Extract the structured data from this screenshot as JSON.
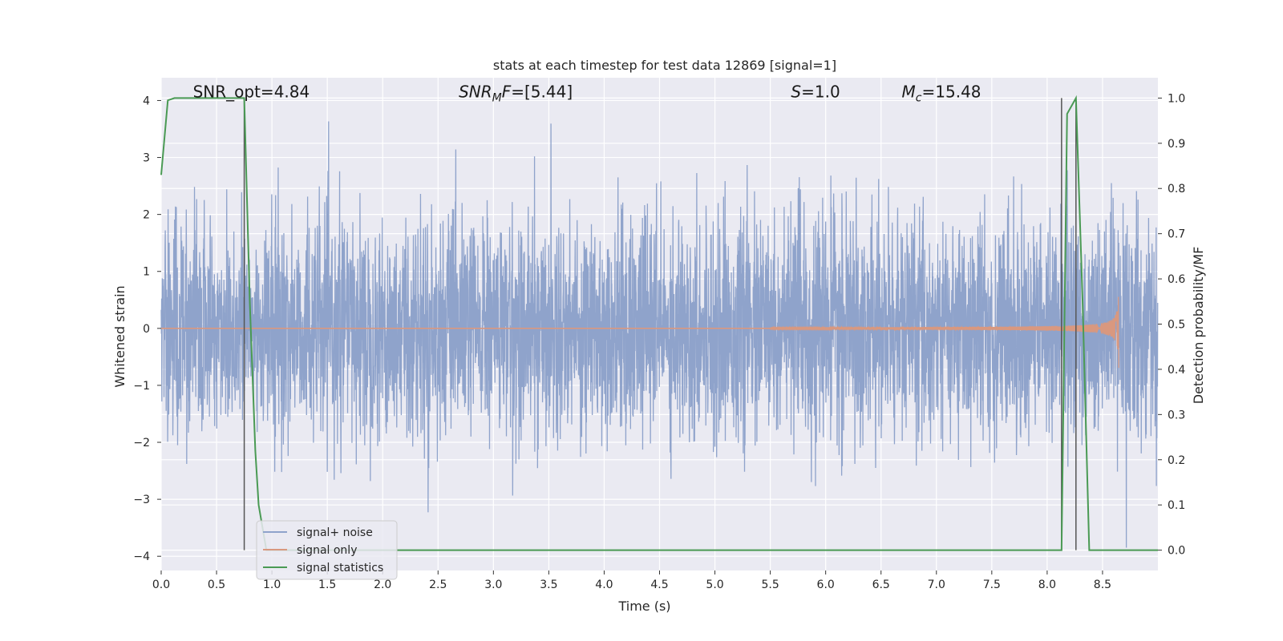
{
  "chart_data": {
    "type": "line",
    "title": "stats at each timestep for test data 12869 [signal=1]",
    "xlabel": "Time (s)",
    "ylabel_left": "Whitened strain",
    "ylabel_right": "Detection probability/MF",
    "xlim": [
      0.0,
      9.0
    ],
    "ylim_left": [
      -4.25,
      4.4
    ],
    "ylim_right": [
      -0.045,
      1.045
    ],
    "xticks": [
      0.0,
      0.5,
      1.0,
      1.5,
      2.0,
      2.5,
      3.0,
      3.5,
      4.0,
      4.5,
      5.0,
      5.5,
      6.0,
      6.5,
      7.0,
      7.5,
      8.0,
      8.5
    ],
    "xtick_labels": [
      "0.0",
      "0.5",
      "1.0",
      "1.5",
      "2.0",
      "2.5",
      "3.0",
      "3.5",
      "4.0",
      "4.5",
      "5.0",
      "5.5",
      "6.0",
      "6.5",
      "7.0",
      "7.5",
      "8.0",
      "8.5"
    ],
    "yticks_left": [
      -4,
      -3,
      -2,
      -1,
      0,
      1,
      2,
      3,
      4
    ],
    "ytick_labels_left": [
      "−4",
      "−3",
      "−2",
      "−1",
      "0",
      "1",
      "2",
      "3",
      "4"
    ],
    "yticks_right": [
      0.0,
      0.1,
      0.2,
      0.3,
      0.4,
      0.5,
      0.6,
      0.7,
      0.8,
      0.9,
      1.0
    ],
    "ytick_labels_right": [
      "0.0",
      "0.1",
      "0.2",
      "0.3",
      "0.4",
      "0.5",
      "0.6",
      "0.7",
      "0.8",
      "0.9",
      "1.0"
    ],
    "grid": true,
    "annotations": [
      {
        "text": "SNR_opt=4.84",
        "x": 0.2,
        "y": 4.1
      },
      {
        "text": "SNR_MF=[5.44]",
        "x": 2.6,
        "y": 4.1
      },
      {
        "text": "S=1.0",
        "x": 5.6,
        "y": 4.1
      },
      {
        "text": "M_c=15.48",
        "x": 6.6,
        "y": 4.1
      }
    ],
    "vertical_lines": [
      {
        "x": 0.75,
        "ymin": -0.0,
        "ymax": 1.0
      },
      {
        "x": 8.13,
        "ymin": -0.0,
        "ymax": 1.0
      },
      {
        "x": 8.26,
        "ymin": -0.0,
        "ymax": 1.0
      }
    ],
    "legend": {
      "position": "lower-left",
      "entries": [
        "signal+ noise",
        "signal only",
        "signal statistics"
      ]
    },
    "series": [
      {
        "name": "signal+ noise",
        "axis": "left",
        "color": "#8fa3cb",
        "kind": "noise",
        "fs": 512,
        "duration": 9.0,
        "std": 0.95
      },
      {
        "name": "signal only",
        "axis": "left",
        "color": "#d9987f",
        "kind": "chirp",
        "t_merge": 8.65,
        "peak": 0.85
      },
      {
        "name": "signal statistics",
        "axis": "right",
        "color": "#4a9a54",
        "x": [
          0.0,
          0.06,
          0.12,
          0.2,
          0.3,
          0.5,
          0.7,
          0.75,
          0.8,
          0.85,
          0.88,
          0.95,
          1.0,
          2.0,
          3.0,
          4.0,
          5.0,
          6.0,
          7.0,
          8.0,
          8.13,
          8.18,
          8.26,
          8.32,
          8.38,
          8.5,
          9.0
        ],
        "y": [
          0.83,
          0.995,
          1.0,
          1.0,
          1.0,
          1.0,
          1.0,
          1.0,
          0.55,
          0.22,
          0.1,
          0.0,
          0.0,
          0.0,
          0.0,
          0.0,
          0.0,
          0.0,
          0.0,
          0.0,
          0.0,
          0.965,
          1.0,
          0.55,
          0.0,
          0.0,
          0.0
        ]
      }
    ]
  }
}
